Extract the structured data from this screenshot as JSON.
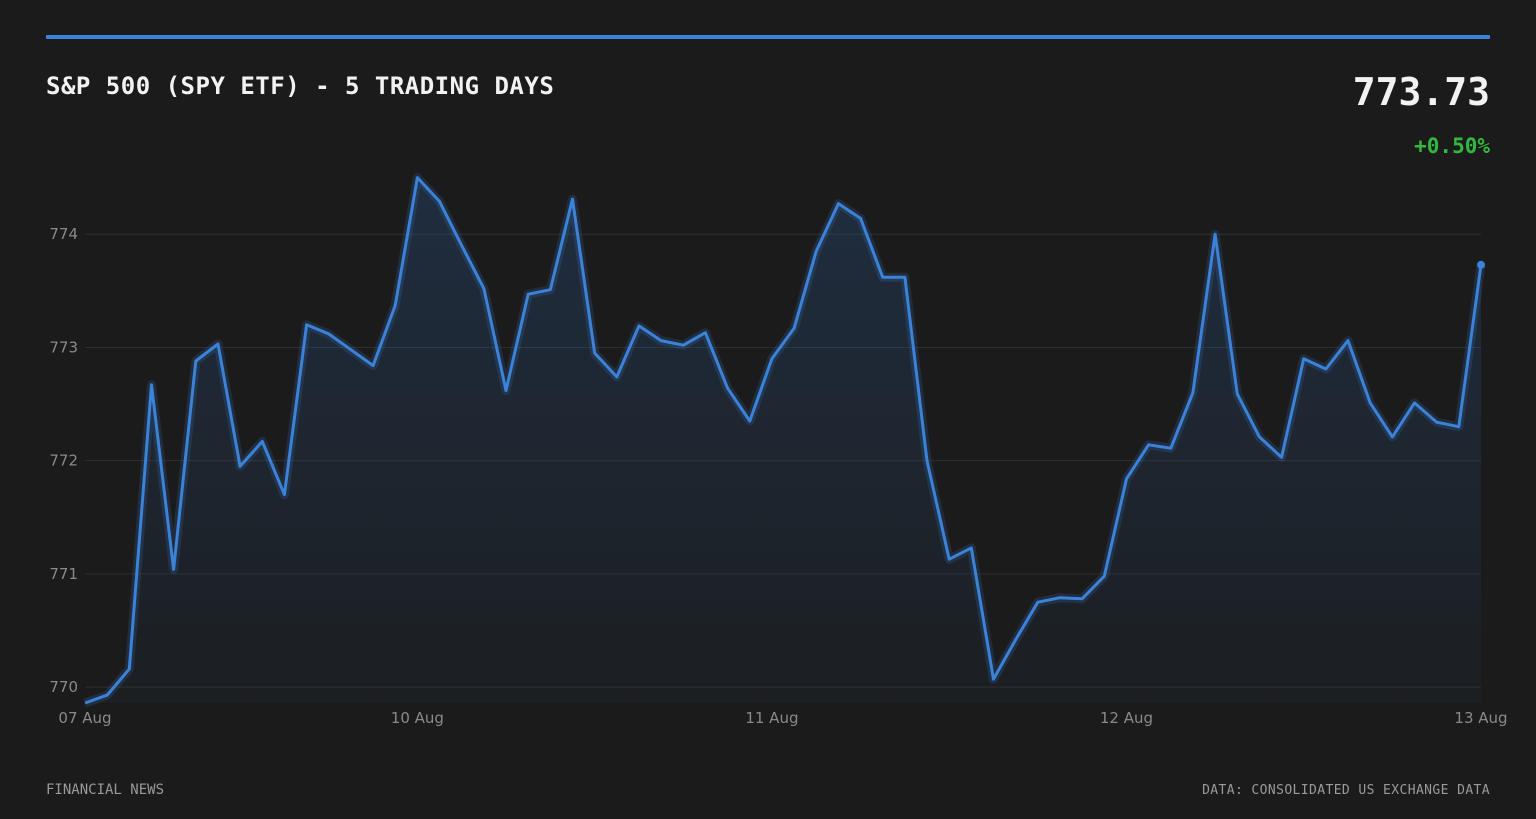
{
  "header": {
    "title": "S&P 500 (SPY ETF) - 5 TRADING DAYS",
    "price": "773.73",
    "change": "+0.50%"
  },
  "footer": {
    "source_label": "FINANCIAL NEWS",
    "data_credit": "DATA: CONSOLIDATED US EXCHANGE DATA"
  },
  "colors": {
    "accent": "#3b82d9",
    "positive": "#33b83f",
    "grid": "#2e2e2e",
    "background": "#1b1b1b"
  },
  "chart_data": {
    "type": "area",
    "title": "S&P 500 (SPY ETF) - 5 TRADING DAYS",
    "ylim": [
      769.86,
      774.62
    ],
    "xlim": [
      0,
      63
    ],
    "yticks": [
      770,
      771,
      772,
      773,
      774
    ],
    "ytick_labels": [
      "770",
      "771",
      "772",
      "773",
      "774"
    ],
    "xticks": [
      0,
      15,
      31,
      47,
      63
    ],
    "xtick_labels": [
      "07 Aug",
      "10 Aug",
      "11 Aug",
      "12 Aug",
      "13 Aug"
    ],
    "grid": true,
    "series": [
      {
        "values": [
          769.86,
          769.93,
          770.16,
          772.67,
          771.04,
          772.88,
          773.03,
          771.95,
          772.17,
          771.7,
          773.2,
          773.12,
          772.98,
          772.84,
          773.37,
          774.5,
          774.29,
          773.9,
          773.52,
          772.62,
          773.47,
          773.51,
          774.31,
          772.95,
          772.74,
          773.19,
          773.06,
          773.02,
          773.13,
          772.64,
          772.35,
          772.9,
          773.17,
          773.85,
          774.27,
          774.14,
          773.62,
          773.62,
          772.0,
          771.13,
          771.23,
          770.07,
          770.42,
          770.75,
          770.79,
          770.78,
          770.98,
          771.84,
          772.14,
          772.11,
          772.6,
          774.0,
          772.59,
          772.21,
          772.03,
          772.9,
          772.81,
          773.06,
          772.51,
          772.21,
          772.51,
          772.34,
          772.3,
          773.73
        ]
      }
    ]
  }
}
